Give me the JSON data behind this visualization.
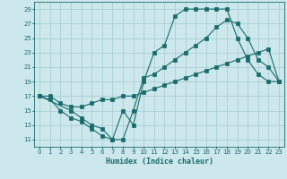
{
  "title": "",
  "xlabel": "Humidex (Indice chaleur)",
  "bg_color": "#cce8ec",
  "grid_color": "#aacdd4",
  "line_color": "#1a6b6b",
  "xlim": [
    -0.5,
    23.5
  ],
  "ylim": [
    10,
    30
  ],
  "xticks": [
    0,
    1,
    2,
    3,
    4,
    5,
    6,
    7,
    8,
    9,
    10,
    11,
    12,
    13,
    14,
    15,
    16,
    17,
    18,
    19,
    20,
    21,
    22,
    23
  ],
  "yticks": [
    11,
    13,
    15,
    17,
    19,
    21,
    23,
    25,
    27,
    29
  ],
  "line1_x": [
    0,
    1,
    2,
    3,
    4,
    5,
    6,
    7,
    8,
    9,
    10,
    11,
    12,
    13,
    14,
    15,
    16,
    17,
    18,
    19,
    20,
    21,
    22,
    23
  ],
  "line1_y": [
    17,
    16.5,
    15,
    14,
    13.5,
    12.5,
    11.5,
    11,
    15,
    13,
    19,
    23,
    24,
    28,
    29,
    29,
    29,
    29,
    29,
    25,
    22,
    20,
    19,
    19
  ],
  "line2_x": [
    0,
    1,
    2,
    3,
    4,
    5,
    6,
    7,
    8,
    9,
    10,
    11,
    12,
    13,
    14,
    15,
    16,
    17,
    18,
    19,
    20,
    21,
    22,
    23
  ],
  "line2_y": [
    17,
    17,
    16,
    15.5,
    15.5,
    16,
    16.5,
    16.5,
    17,
    17,
    17.5,
    18,
    18.5,
    19,
    19.5,
    20,
    20.5,
    21,
    21.5,
    22,
    22.5,
    23,
    23.5,
    19
  ],
  "line3_x": [
    0,
    3,
    4,
    5,
    6,
    7,
    8,
    9,
    10,
    11,
    12,
    13,
    14,
    15,
    16,
    17,
    18,
    19,
    20,
    21,
    22,
    23
  ],
  "line3_y": [
    17,
    15,
    14,
    13,
    12.5,
    11,
    11,
    15,
    19.5,
    20,
    21,
    22,
    23,
    24,
    25,
    26.5,
    27.5,
    27,
    25,
    22,
    21,
    19
  ]
}
